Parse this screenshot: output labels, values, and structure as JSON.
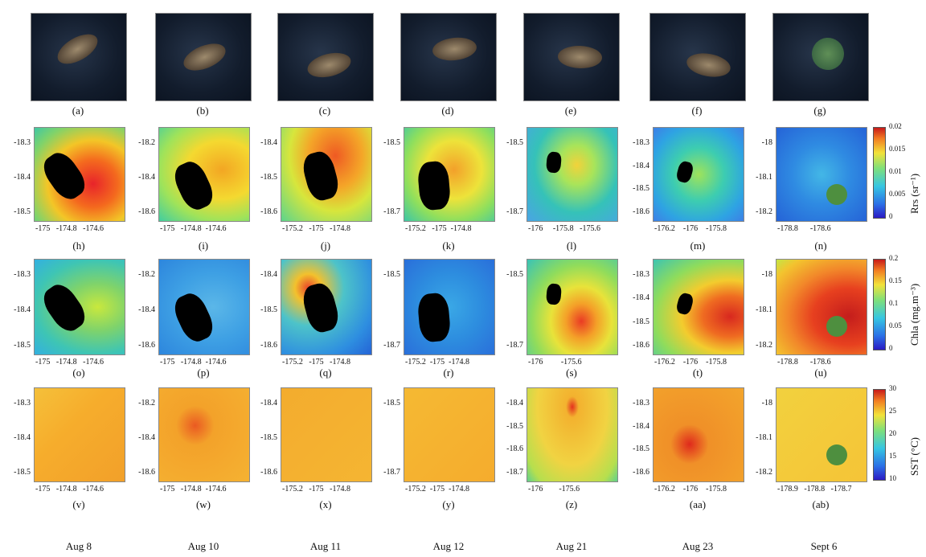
{
  "rows": {
    "satellite": {
      "letters": [
        "(a)",
        "(b)",
        "(c)",
        "(d)",
        "(e)",
        "(f)",
        "(g)"
      ]
    },
    "rrs": {
      "letters": [
        "(h)",
        "(i)",
        "(j)",
        "(k)",
        "(l)",
        "(m)",
        "(n)"
      ],
      "yticks": [
        [
          "-18.3",
          "-18.4",
          "-18.5"
        ],
        [
          "-18.2",
          "-18.4",
          "-18.6"
        ],
        [
          "-18.4",
          "-18.5",
          "-18.6"
        ],
        [
          "-18.5",
          "-18.7"
        ],
        [
          "-18.5",
          "-18.7"
        ],
        [
          "-18.3",
          "-18.4",
          "-18.5",
          "-18.6"
        ],
        [
          "-18",
          "-18.1",
          "-18.2"
        ]
      ],
      "xticks": [
        "-175   -174.8   -174.6",
        "-175   -174.8  -174.6",
        "-175.2   -175   -174.8",
        "-175.2   -175  -174.8",
        "-176     -175.8   -175.6",
        "-176.2    -176    -175.8",
        "-178.8      -178.6"
      ]
    },
    "chla": {
      "letters": [
        "(o)",
        "(p)",
        "(q)",
        "(r)",
        "(s)",
        "(t)",
        "(u)"
      ],
      "yticks": [
        [
          "-18.3",
          "-18.4",
          "-18.5"
        ],
        [
          "-18.2",
          "-18.4",
          "-18.6"
        ],
        [
          "-18.4",
          "-18.5",
          "-18.6"
        ],
        [
          "-18.5",
          "-18.7"
        ],
        [
          "-18.5",
          "-18.7"
        ],
        [
          "-18.3",
          "-18.4",
          "-18.5",
          "-18.6"
        ],
        [
          "-18",
          "-18.1",
          "-18.2"
        ]
      ],
      "xticks": [
        "-175   -174.8   -174.6",
        "-175   -174.8  -174.6",
        "-175.2   -175   -174.8",
        "-175.2  -175  -174.8",
        "-176         -175.6",
        "-176.2    -176    -175.8",
        "-178.8      -178.6"
      ]
    },
    "sst": {
      "letters": [
        "(v)",
        "(w)",
        "(x)",
        "(y)",
        "(z)",
        "(aa)",
        "(ab)"
      ],
      "yticks": [
        [
          "-18.3",
          "-18.4",
          "-18.5"
        ],
        [
          "-18.2",
          "-18.4",
          "-18.6"
        ],
        [
          "-18.4",
          "-18.5",
          "-18.6"
        ],
        [
          "-18.5",
          "-18.7"
        ],
        [
          "-18.4",
          "-18.5",
          "-18.6",
          "-18.7"
        ],
        [
          "-18.3",
          "-18.4",
          "-18.5",
          "-18.6"
        ],
        [
          "-18",
          "-18.1",
          "-18.2"
        ]
      ],
      "xticks": [
        "-175   -174.8   -174.6",
        "-175   -174.8  -174.6",
        "-175.2   -175   -174.8",
        "-175.2  -175  -174.8",
        "-176        -175.6",
        "-176.2    -176    -175.8",
        "-178.9   -178.8   -178.7"
      ]
    }
  },
  "dates": [
    "Aug 8",
    "Aug 10",
    "Aug 11",
    "Aug 12",
    "Aug 21",
    "Aug 23",
    "Sept 6"
  ],
  "colorbars": {
    "rrs": {
      "label": "Rrs (sr⁻¹)",
      "ticks": [
        "0.02",
        "0.015",
        "0.01",
        "0.005",
        "0"
      ]
    },
    "chla": {
      "label": "Chla (mg.m⁻³)",
      "ticks": [
        "0.2",
        "0.15",
        "0.1",
        "0.05",
        "0"
      ]
    },
    "sst": {
      "label": "SST (°C)",
      "ticks": [
        "30",
        "25",
        "20",
        "15",
        "10"
      ]
    }
  }
}
